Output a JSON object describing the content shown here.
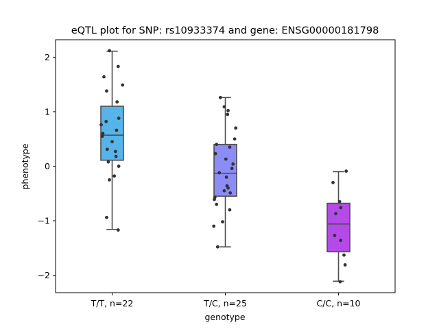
{
  "chart_data": {
    "type": "box",
    "title": "eQTL plot for SNP: rs10933374 and gene: ENSG00000181798",
    "xlabel": "genotype",
    "ylabel": "phenotype",
    "ylim": [
      -2.32,
      2.32
    ],
    "yticks": [
      -2,
      -1,
      0,
      1,
      2
    ],
    "grid": false,
    "groups": [
      {
        "label": "T/T, n=22",
        "color": "#56b4ea",
        "box": {
          "whisker_low": -1.16,
          "q1": 0.11,
          "median": 0.57,
          "q3": 1.1,
          "whisker_high": 2.11
        },
        "points": [
          [
            -0.05,
            2.12
          ],
          [
            0.11,
            1.83
          ],
          [
            -0.15,
            1.64
          ],
          [
            0.19,
            1.49
          ],
          [
            -0.1,
            1.38
          ],
          [
            0.09,
            1.18
          ],
          [
            0.12,
            0.88
          ],
          [
            -0.11,
            0.82
          ],
          [
            -0.2,
            0.76
          ],
          [
            0.08,
            0.66
          ],
          [
            -0.17,
            0.6
          ],
          [
            -0.18,
            0.55
          ],
          [
            0.0,
            0.45
          ],
          [
            -0.09,
            0.31
          ],
          [
            0.06,
            0.27
          ],
          [
            0.07,
            0.18
          ],
          [
            -0.07,
            0.08
          ],
          [
            0.12,
            0.0
          ],
          [
            0.04,
            -0.18
          ],
          [
            -0.05,
            -0.25
          ],
          [
            -0.1,
            -0.94
          ],
          [
            0.11,
            -1.17
          ]
        ]
      },
      {
        "label": "T/C, n=25",
        "color": "#8c8cf7",
        "box": {
          "whisker_low": -1.48,
          "q1": -0.55,
          "median": -0.13,
          "q3": 0.4,
          "whisker_high": 1.26
        },
        "points": [
          [
            -0.09,
            1.26
          ],
          [
            -0.02,
            1.09
          ],
          [
            0.05,
            1.02
          ],
          [
            0.04,
            0.95
          ],
          [
            0.19,
            0.7
          ],
          [
            0.17,
            0.5
          ],
          [
            -0.16,
            0.4
          ],
          [
            0.08,
            0.35
          ],
          [
            -0.18,
            0.23
          ],
          [
            0.01,
            0.13
          ],
          [
            0.14,
            0.04
          ],
          [
            0.12,
            -0.04
          ],
          [
            -0.11,
            -0.12
          ],
          [
            0.03,
            -0.36
          ],
          [
            0.05,
            -0.4
          ],
          [
            -0.02,
            -0.45
          ],
          [
            0.09,
            -0.49
          ],
          [
            -0.19,
            -0.57
          ],
          [
            -0.2,
            -0.61
          ],
          [
            -0.16,
            -0.7
          ],
          [
            0.08,
            -0.8
          ],
          [
            -0.05,
            -1.02
          ],
          [
            -0.21,
            -1.1
          ],
          [
            -0.14,
            -1.48
          ],
          [
            0.02,
            -0.2
          ]
        ]
      },
      {
        "label": "C/C, n=10",
        "color": "#b44be8",
        "box": {
          "whisker_low": -2.11,
          "q1": -1.57,
          "median": -1.06,
          "q3": -0.68,
          "whisker_high": -0.1
        },
        "points": [
          [
            0.14,
            -0.09
          ],
          [
            -0.1,
            -0.3
          ],
          [
            0.02,
            -0.65
          ],
          [
            0.04,
            -0.76
          ],
          [
            -0.05,
            -0.87
          ],
          [
            -0.07,
            -1.27
          ],
          [
            0.04,
            -1.36
          ],
          [
            0.1,
            -1.63
          ],
          [
            0.12,
            -1.81
          ],
          [
            0.03,
            -2.12
          ]
        ]
      }
    ]
  }
}
